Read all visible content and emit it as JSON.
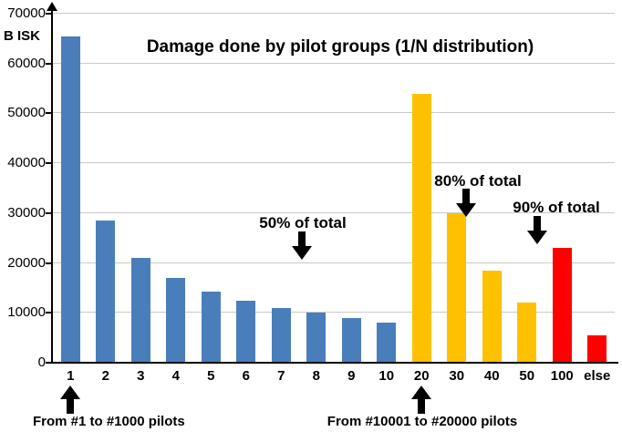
{
  "chart_data": {
    "type": "bar",
    "title": "Damage done by pilot groups (1/N distribution)",
    "ylabel": "B ISK",
    "xlabel": "",
    "ylim": [
      0,
      70000
    ],
    "yticks": [
      0,
      10000,
      20000,
      30000,
      40000,
      50000,
      60000,
      70000
    ],
    "grid": true,
    "legend": "none",
    "categories": [
      "1",
      "2",
      "3",
      "4",
      "5",
      "6",
      "7",
      "8",
      "9",
      "10",
      "20",
      "30",
      "40",
      "50",
      "100",
      "else"
    ],
    "values": [
      65500,
      28500,
      21000,
      17000,
      14300,
      12500,
      11000,
      10000,
      9000,
      8000,
      54000,
      30000,
      18500,
      12000,
      23000,
      5500
    ],
    "bar_groups": [
      "blue",
      "blue",
      "blue",
      "blue",
      "blue",
      "blue",
      "blue",
      "blue",
      "blue",
      "blue",
      "yellow",
      "yellow",
      "yellow",
      "yellow",
      "red",
      "red"
    ],
    "colors": {
      "blue": "#4a7ebb",
      "yellow": "#ffc000",
      "red": "#fe0000"
    },
    "annotations": {
      "pct50": "50% of total",
      "pct80": "80% of total",
      "pct90": "90% of total",
      "group1": "From #1 to #1000 pilots",
      "group20": "From #10001 to #20000 pilots"
    }
  },
  "icons": [
    "down-arrow-icon",
    "up-arrow-icon",
    "y-axis-arrow-icon"
  ]
}
